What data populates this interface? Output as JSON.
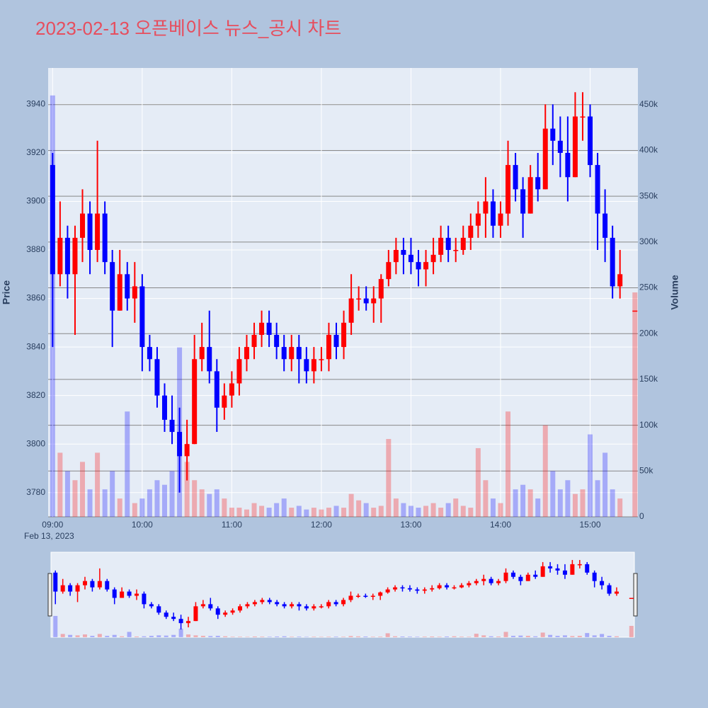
{
  "chart_data": {
    "type": "candlestick",
    "title": "2023-02-13 오픈베이스 뉴스_공시 차트",
    "y_label": "Price",
    "y2_label": "Volume",
    "x_sublabel": "Feb 13, 2023",
    "increasing_color": "#ff0000",
    "decreasing_color": "#0000ff",
    "xlim": [
      "08:57",
      "15:32"
    ],
    "xticks": [
      "09:00",
      "10:00",
      "11:00",
      "12:00",
      "13:00",
      "14:00",
      "15:00"
    ],
    "ylim": [
      3770,
      3955
    ],
    "yticks": [
      3780,
      3800,
      3820,
      3840,
      3860,
      3880,
      3900,
      3920,
      3940
    ],
    "y2lim": [
      0,
      490000
    ],
    "y2ticks": [
      0,
      {
        "value": 50000,
        "label": "50k"
      },
      {
        "value": 100000,
        "label": "100k"
      },
      {
        "value": 150000,
        "label": "150k"
      },
      {
        "value": 200000,
        "label": "200k"
      },
      {
        "value": 250000,
        "label": "250k"
      },
      {
        "value": 300000,
        "label": "300k"
      },
      {
        "value": 350000,
        "label": "350k"
      },
      {
        "value": 400000,
        "label": "400k"
      },
      {
        "value": 450000,
        "label": "450k"
      }
    ],
    "x": [
      "09:00",
      "09:05",
      "09:10",
      "09:15",
      "09:20",
      "09:25",
      "09:30",
      "09:35",
      "09:40",
      "09:45",
      "09:50",
      "09:55",
      "10:00",
      "10:05",
      "10:10",
      "10:15",
      "10:20",
      "10:25",
      "10:30",
      "10:35",
      "10:40",
      "10:45",
      "10:50",
      "10:55",
      "11:00",
      "11:05",
      "11:10",
      "11:15",
      "11:20",
      "11:25",
      "11:30",
      "11:35",
      "11:40",
      "11:45",
      "11:50",
      "11:55",
      "12:00",
      "12:05",
      "12:10",
      "12:15",
      "12:20",
      "12:25",
      "12:30",
      "12:35",
      "12:40",
      "12:45",
      "12:50",
      "12:55",
      "13:00",
      "13:05",
      "13:10",
      "13:15",
      "13:20",
      "13:25",
      "13:30",
      "13:35",
      "13:40",
      "13:45",
      "13:50",
      "13:55",
      "14:00",
      "14:05",
      "14:10",
      "14:15",
      "14:20",
      "14:25",
      "14:30",
      "14:35",
      "14:40",
      "14:45",
      "14:50",
      "14:55",
      "15:00",
      "15:05",
      "15:10",
      "15:15",
      "15:20",
      "15:30"
    ],
    "open": [
      3915,
      3870,
      3885,
      3870,
      3885,
      3895,
      3880,
      3895,
      3875,
      3855,
      3870,
      3860,
      3865,
      3840,
      3835,
      3820,
      3810,
      3805,
      3795,
      3800,
      3835,
      3840,
      3830,
      3815,
      3820,
      3825,
      3835,
      3840,
      3845,
      3850,
      3845,
      3840,
      3835,
      3840,
      3835,
      3830,
      3835,
      3835,
      3845,
      3840,
      3850,
      3860,
      3860,
      3858,
      3860,
      3868,
      3875,
      3880,
      3878,
      3875,
      3872,
      3875,
      3878,
      3885,
      3880,
      3880,
      3885,
      3890,
      3895,
      3900,
      3890,
      3895,
      3915,
      3905,
      3895,
      3910,
      3905,
      3930,
      3925,
      3920,
      3910,
      3935,
      3935,
      3915,
      3895,
      3885,
      3865,
      3855
    ],
    "high": [
      3920,
      3900,
      3890,
      3890,
      3905,
      3900,
      3925,
      3900,
      3880,
      3880,
      3875,
      3875,
      3870,
      3845,
      3840,
      3825,
      3820,
      3815,
      3810,
      3845,
      3850,
      3855,
      3835,
      3825,
      3830,
      3840,
      3845,
      3850,
      3855,
      3855,
      3850,
      3845,
      3845,
      3845,
      3840,
      3840,
      3840,
      3850,
      3850,
      3855,
      3870,
      3865,
      3865,
      3865,
      3870,
      3880,
      3885,
      3885,
      3885,
      3880,
      3880,
      3885,
      3890,
      3890,
      3885,
      3890,
      3895,
      3900,
      3910,
      3905,
      3900,
      3925,
      3920,
      3910,
      3915,
      3920,
      3940,
      3940,
      3935,
      3935,
      3945,
      3945,
      3940,
      3920,
      3905,
      3890,
      3880,
      3855
    ],
    "low": [
      3840,
      3865,
      3860,
      3845,
      3875,
      3870,
      3875,
      3870,
      3840,
      3855,
      3855,
      3850,
      3830,
      3830,
      3815,
      3805,
      3800,
      3780,
      3785,
      3800,
      3830,
      3825,
      3805,
      3810,
      3815,
      3820,
      3830,
      3835,
      3840,
      3840,
      3835,
      3830,
      3830,
      3825,
      3825,
      3825,
      3830,
      3830,
      3835,
      3835,
      3845,
      3855,
      3855,
      3850,
      3850,
      3865,
      3870,
      3870,
      3870,
      3865,
      3865,
      3870,
      3875,
      3875,
      3875,
      3878,
      3880,
      3885,
      3885,
      3885,
      3885,
      3890,
      3900,
      3885,
      3895,
      3900,
      3905,
      3915,
      3910,
      3900,
      3910,
      3925,
      3910,
      3880,
      3875,
      3860,
      3860,
      3855
    ],
    "close": [
      3870,
      3885,
      3870,
      3885,
      3895,
      3880,
      3895,
      3875,
      3855,
      3870,
      3860,
      3865,
      3840,
      3835,
      3820,
      3810,
      3805,
      3795,
      3800,
      3835,
      3840,
      3830,
      3815,
      3820,
      3825,
      3835,
      3840,
      3845,
      3850,
      3845,
      3840,
      3835,
      3840,
      3835,
      3830,
      3835,
      3835,
      3845,
      3840,
      3850,
      3860,
      3860,
      3858,
      3860,
      3868,
      3875,
      3880,
      3878,
      3875,
      3872,
      3875,
      3878,
      3885,
      3880,
      3880,
      3885,
      3890,
      3895,
      3900,
      3890,
      3895,
      3915,
      3905,
      3895,
      3910,
      3905,
      3930,
      3925,
      3920,
      3910,
      3935,
      3935,
      3915,
      3895,
      3885,
      3865,
      3870,
      3855
    ],
    "volume": [
      460000,
      70000,
      50000,
      40000,
      60000,
      30000,
      70000,
      30000,
      50000,
      20000,
      115000,
      15000,
      20000,
      30000,
      40000,
      35000,
      50000,
      185000,
      60000,
      40000,
      30000,
      25000,
      30000,
      20000,
      10000,
      10000,
      8000,
      15000,
      12000,
      10000,
      15000,
      20000,
      10000,
      12000,
      8000,
      10000,
      8000,
      10000,
      12000,
      10000,
      25000,
      18000,
      15000,
      10000,
      12000,
      85000,
      20000,
      15000,
      12000,
      10000,
      12000,
      15000,
      10000,
      15000,
      20000,
      12000,
      10000,
      75000,
      40000,
      20000,
      15000,
      115000,
      30000,
      35000,
      30000,
      20000,
      100000,
      50000,
      30000,
      40000,
      25000,
      30000,
      90000,
      40000,
      70000,
      30000,
      20000,
      245000
    ]
  }
}
